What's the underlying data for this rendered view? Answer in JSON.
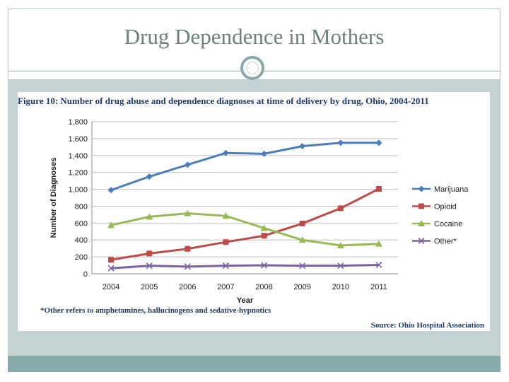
{
  "slide": {
    "title": "Drug Dependence in Mothers"
  },
  "figure": {
    "title": "Figure 10: Number of drug abuse and dependence diagnoses at time of delivery by drug, Ohio, 2004-2011",
    "footnote": "*Other refers to amphetamines, hallucinogens and sedative-hypnotics",
    "source": "Source: Ohio Hospital Association"
  },
  "colors": {
    "frame": "#b9c7c8",
    "band": "#c3d2d3",
    "footer": "#87aaaa",
    "title_text": "#6f7f80"
  },
  "chart_data": {
    "type": "line",
    "xlabel": "Year",
    "ylabel": "Number of Diagnoses",
    "categories": [
      "2004",
      "2005",
      "2006",
      "2007",
      "2008",
      "2009",
      "2010",
      "2011"
    ],
    "ylim": [
      0,
      1800
    ],
    "yticks": [
      0,
      200,
      400,
      600,
      800,
      1000,
      1200,
      1400,
      1600,
      1800
    ],
    "ytick_labels": [
      "0",
      "200",
      "400",
      "600",
      "800",
      "1,000",
      "1,200",
      "1,400",
      "1,600",
      "1,800"
    ],
    "grid": true,
    "legend_position": "right",
    "series": [
      {
        "name": "Marijuana",
        "color": "#4a7ebb",
        "marker": "diamond",
        "values": [
          990,
          1150,
          1290,
          1430,
          1420,
          1510,
          1550,
          1550
        ]
      },
      {
        "name": "Opioid",
        "color": "#be4b48",
        "marker": "square",
        "values": [
          165,
          240,
          295,
          375,
          450,
          595,
          775,
          1005
        ]
      },
      {
        "name": "Cocaine",
        "color": "#98b954",
        "marker": "triangle",
        "values": [
          575,
          675,
          715,
          685,
          540,
          400,
          335,
          355
        ]
      },
      {
        "name": "Other*",
        "color": "#7d60a0",
        "marker": "x",
        "values": [
          65,
          95,
          85,
          95,
          100,
          95,
          95,
          105
        ]
      }
    ]
  }
}
